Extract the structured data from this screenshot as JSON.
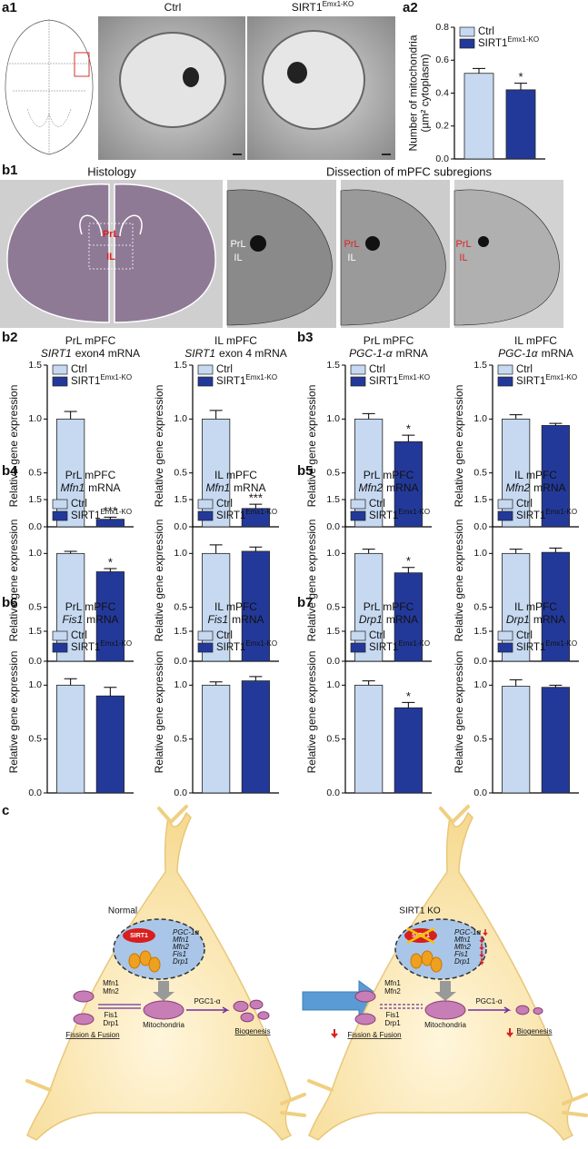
{
  "panel_labels": {
    "a1": "a1",
    "a2": "a2",
    "b1": "b1",
    "b2": "b2",
    "b3": "b3",
    "b4": "b4",
    "b5": "b5",
    "b6": "b6",
    "b7": "b7",
    "c": "c"
  },
  "a1": {
    "ctrl": "Ctrl",
    "ko": "SIRT1",
    "ko_sup": "Emx1-KO"
  },
  "b1": {
    "title_left": "Histology",
    "title_right": "Dissection of mPFC subregions",
    "histology_labels": [
      "PrL",
      "IL"
    ],
    "dissection_labels": [
      [
        "PrL",
        "IL"
      ],
      [
        "PrL",
        "IL"
      ],
      [
        "PrL",
        "IL"
      ]
    ]
  },
  "chart_data": [
    {
      "type": "bar",
      "y_label": [
        "Number of mitochondria",
        "(µm² cytoplasm)"
      ],
      "ylim": [
        0,
        0.8
      ],
      "yticks": [
        {
          "value": 0,
          "label": "0.0"
        },
        0.2,
        0.4,
        0.6,
        0.8
      ],
      "series": [
        {
          "name": "Ctrl",
          "color": "#c6d9f0",
          "values": [
            0.52
          ],
          "errors": [
            0.03
          ]
        },
        {
          "name": "SIRT1",
          "name_sup": "Emx1-KO",
          "color": "#23399a",
          "values": [
            0.42
          ],
          "errors": [
            0.04
          ],
          "significance": "*"
        }
      ]
    },
    {
      "type": "bar",
      "title": "PrL mPFC",
      "subtitle_gene": "SIRT1",
      "subtitle_rest": "exon4 mRNA",
      "y_label": [
        "Relative gene expression"
      ],
      "ylim": [
        0,
        1.5
      ],
      "yticks": [
        {
          "value": 0,
          "label": "0.0"
        },
        0.5,
        {
          "value": 1,
          "label": "1.0"
        },
        1.5
      ],
      "series": [
        {
          "name": "Ctrl",
          "color": "#c6d9f0",
          "values": [
            1.0
          ],
          "errors": [
            0.07
          ]
        },
        {
          "name": "SIRT1",
          "name_sup": "Emx1-KO",
          "color": "#23399a",
          "values": [
            0.07
          ],
          "errors": [
            0.02
          ],
          "significance": "***"
        }
      ]
    },
    {
      "type": "bar",
      "title": "IL mPFC",
      "subtitle_gene": "SIRT1",
      "subtitle_rest": "exon 4 mRNA",
      "y_label": [
        "Relative gene expression"
      ],
      "ylim": [
        0,
        1.5
      ],
      "yticks": [
        {
          "value": 0,
          "label": "0.0"
        },
        0.5,
        {
          "value": 1,
          "label": "1.0"
        },
        1.5
      ],
      "series": [
        {
          "name": "Ctrl",
          "color": "#c6d9f0",
          "values": [
            1.0
          ],
          "errors": [
            0.08
          ]
        },
        {
          "name": "SIRT1",
          "name_sup": "Emx1-KO",
          "color": "#23399a",
          "values": [
            0.17
          ],
          "errors": [
            0.04
          ],
          "significance": "***"
        }
      ]
    },
    {
      "type": "bar",
      "title": "PrL mPFC",
      "subtitle_gene": "PGC-1-α",
      "subtitle_rest": "mRNA",
      "y_label": [
        "Relative gene expression"
      ],
      "ylim": [
        0,
        1.5
      ],
      "yticks": [
        {
          "value": 0,
          "label": "0.0"
        },
        0.5,
        {
          "value": 1,
          "label": "1.0"
        },
        1.5
      ],
      "series": [
        {
          "name": "Ctrl",
          "color": "#c6d9f0",
          "values": [
            1.0
          ],
          "errors": [
            0.05
          ]
        },
        {
          "name": "SIRT1",
          "name_sup": "Emx1-KO",
          "color": "#23399a",
          "values": [
            0.79
          ],
          "errors": [
            0.06
          ],
          "significance": "*"
        }
      ]
    },
    {
      "type": "bar",
      "title": "IL mPFC",
      "subtitle_gene": "PGC-1α",
      "subtitle_rest": "mRNA",
      "y_label": [
        "Relative gene expression"
      ],
      "ylim": [
        0,
        1.5
      ],
      "yticks": [
        {
          "value": 0,
          "label": "0.0"
        },
        0.5,
        {
          "value": 1,
          "label": "1.0"
        },
        1.5
      ],
      "series": [
        {
          "name": "Ctrl",
          "color": "#c6d9f0",
          "values": [
            1.0
          ],
          "errors": [
            0.04
          ]
        },
        {
          "name": "SIRT1",
          "name_sup": "Emx1-KO",
          "color": "#23399a",
          "values": [
            0.94
          ],
          "errors": [
            0.02
          ]
        }
      ]
    },
    {
      "type": "bar",
      "title": "PrL mPFC",
      "subtitle_gene": "Mfn1",
      "subtitle_rest": "mRNA",
      "y_label": [
        "Relative gene expression"
      ],
      "ylim": [
        0,
        1.5
      ],
      "yticks": [
        {
          "value": 0,
          "label": "0.0"
        },
        0.5,
        {
          "value": 1,
          "label": "1.0"
        },
        1.5
      ],
      "series": [
        {
          "name": "Ctrl",
          "color": "#c6d9f0",
          "values": [
            1.0
          ],
          "errors": [
            0.02
          ]
        },
        {
          "name": "SIRT1",
          "name_sup": "Emx1-KO",
          "color": "#23399a",
          "values": [
            0.83
          ],
          "errors": [
            0.03
          ],
          "significance": "*"
        }
      ]
    },
    {
      "type": "bar",
      "title": "IL mPFC",
      "subtitle_gene": "Mfn1",
      "subtitle_rest": "mRNA",
      "y_label": [
        "Relative gene expression"
      ],
      "ylim": [
        0,
        1.5
      ],
      "yticks": [
        {
          "value": 0,
          "label": "0.0"
        },
        0.5,
        {
          "value": 1,
          "label": "1.0"
        },
        1.5
      ],
      "series": [
        {
          "name": "Ctrl",
          "color": "#c6d9f0",
          "values": [
            1.0
          ],
          "errors": [
            0.08
          ]
        },
        {
          "name": "SIRT1",
          "name_sup": "Emx1-KO",
          "color": "#23399a",
          "values": [
            1.02
          ],
          "errors": [
            0.04
          ]
        }
      ]
    },
    {
      "type": "bar",
      "title": "PrL mPFC",
      "subtitle_gene": "Mfn2",
      "subtitle_rest": "mRNA",
      "y_label": [
        "Relative gene expression"
      ],
      "ylim": [
        0,
        1.5
      ],
      "yticks": [
        {
          "value": 0,
          "label": "0.0"
        },
        0.5,
        {
          "value": 1,
          "label": "1.0"
        },
        1.5
      ],
      "series": [
        {
          "name": "Ctrl",
          "color": "#c6d9f0",
          "values": [
            1.0
          ],
          "errors": [
            0.04
          ]
        },
        {
          "name": "SIRT1",
          "name_sup": "Emx1-KO",
          "color": "#23399a",
          "values": [
            0.82
          ],
          "errors": [
            0.05
          ],
          "significance": "*"
        }
      ]
    },
    {
      "type": "bar",
      "title": "IL mPFC",
      "subtitle_gene": "Mfn2",
      "subtitle_rest": "mRNA",
      "y_label": [
        "Relative gene expression"
      ],
      "ylim": [
        0,
        1.5
      ],
      "yticks": [
        {
          "value": 0,
          "label": "0.0"
        },
        0.5,
        {
          "value": 1,
          "label": "1.0"
        },
        1.5
      ],
      "series": [
        {
          "name": "Ctrl",
          "color": "#c6d9f0",
          "values": [
            1.0
          ],
          "errors": [
            0.04
          ]
        },
        {
          "name": "SIRT1",
          "name_sup": "Emx1-KO",
          "color": "#23399a",
          "values": [
            1.01
          ],
          "errors": [
            0.04
          ]
        }
      ]
    },
    {
      "type": "bar",
      "title": "PrL mPFC",
      "subtitle_gene": "Fis1",
      "subtitle_rest": "mRNA",
      "y_label": [
        "Relative gene expression"
      ],
      "ylim": [
        0,
        1.5
      ],
      "yticks": [
        {
          "value": 0,
          "label": "0.0"
        },
        0.5,
        {
          "value": 1,
          "label": "1.0"
        },
        1.5
      ],
      "series": [
        {
          "name": "Ctrl",
          "color": "#c6d9f0",
          "values": [
            1.0
          ],
          "errors": [
            0.06
          ]
        },
        {
          "name": "SIRT1",
          "name_sup": "Emx1-KO",
          "color": "#23399a",
          "values": [
            0.9
          ],
          "errors": [
            0.08
          ]
        }
      ]
    },
    {
      "type": "bar",
      "title": "IL mPFC",
      "subtitle_gene": "Fis1",
      "subtitle_rest": "mRNA",
      "y_label": [
        "Relative gene expression"
      ],
      "ylim": [
        0,
        1.5
      ],
      "yticks": [
        {
          "value": 0,
          "label": "0.0"
        },
        0.5,
        {
          "value": 1,
          "label": "1.0"
        },
        1.5
      ],
      "series": [
        {
          "name": "Ctrl",
          "color": "#c6d9f0",
          "values": [
            1.0
          ],
          "errors": [
            0.03
          ]
        },
        {
          "name": "SIRT1",
          "name_sup": "Emx1-KO",
          "color": "#23399a",
          "values": [
            1.04
          ],
          "errors": [
            0.04
          ]
        }
      ]
    },
    {
      "type": "bar",
      "title": "PrL mPFC",
      "subtitle_gene": "Drp1",
      "subtitle_rest": "mRNA",
      "y_label": [
        "Relative gene expression"
      ],
      "ylim": [
        0,
        1.5
      ],
      "yticks": [
        {
          "value": 0,
          "label": "0.0"
        },
        0.5,
        {
          "value": 1,
          "label": "1.0"
        },
        1.5
      ],
      "series": [
        {
          "name": "Ctrl",
          "color": "#c6d9f0",
          "values": [
            1.0
          ],
          "errors": [
            0.04
          ]
        },
        {
          "name": "SIRT1",
          "name_sup": "Emx1-KO",
          "color": "#23399a",
          "values": [
            0.79
          ],
          "errors": [
            0.05
          ],
          "significance": "*"
        }
      ]
    },
    {
      "type": "bar",
      "title": "IL mPFC",
      "subtitle_gene": "Drp1",
      "subtitle_rest": "mRNA",
      "y_label": [
        "Relative gene expression"
      ],
      "ylim": [
        0,
        1.5
      ],
      "yticks": [
        {
          "value": 0,
          "label": "0.0"
        },
        0.5,
        {
          "value": 1,
          "label": "1.0"
        },
        1.5
      ],
      "series": [
        {
          "name": "Ctrl",
          "color": "#c6d9f0",
          "values": [
            0.99
          ],
          "errors": [
            0.06
          ]
        },
        {
          "name": "SIRT1",
          "name_sup": "Emx1-KO",
          "color": "#23399a",
          "values": [
            0.98
          ],
          "errors": [
            0.02
          ]
        }
      ]
    }
  ],
  "diagram": {
    "normal": {
      "label": "Normal",
      "nucleus_protein": "SIRT1",
      "genes": [
        "PGC-1α",
        "Mfn1",
        "Mfn2",
        "Fis1",
        "Drp1"
      ],
      "fusion": [
        "Mfn1",
        "Mfn2"
      ],
      "fission": [
        "Fis1",
        "Drp1"
      ],
      "organelle": "Mitochondria",
      "factor": "PGC1-α",
      "biogenesis": "Biogenesis",
      "dynamics": "Fission & Fusion"
    },
    "ko": {
      "label": "SIRT1 KO",
      "nucleus_protein": "SIRT1",
      "genes": [
        "PGC-1α",
        "Mfn1",
        "Mfn2",
        "Fis1",
        "Drp1"
      ],
      "fusion": [
        "Mfn1",
        "Mfn2"
      ],
      "fission": [
        "Fis1",
        "Drp1"
      ],
      "organelle": "Mitochondria",
      "factor": "PGC1-α",
      "biogenesis": "Biogenesis",
      "dynamics": "Fission & Fusion"
    }
  }
}
